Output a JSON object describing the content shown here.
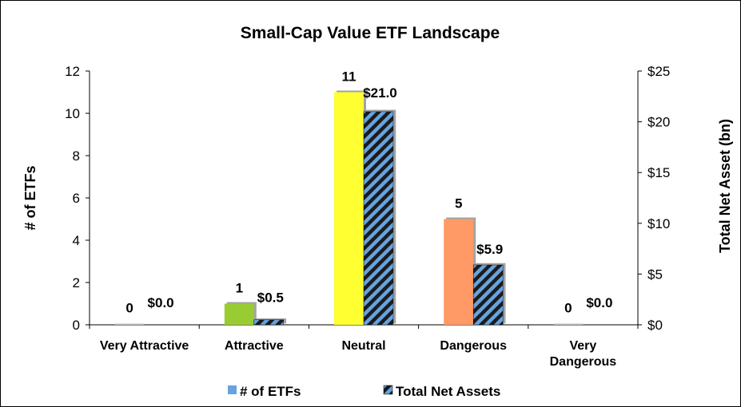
{
  "chart_data": {
    "type": "bar",
    "title": "Small-Cap Value ETF Landscape",
    "ylabel": "# of ETFs",
    "y2label": "Total Net Asset (bn)",
    "ylim": [
      0,
      12
    ],
    "y2lim": [
      0,
      25
    ],
    "yticks": [
      "0",
      "2",
      "4",
      "6",
      "8",
      "10",
      "12"
    ],
    "y2ticks": [
      "$0",
      "$5",
      "$10",
      "$15",
      "$20",
      "$25"
    ],
    "categories": [
      [
        "Very Attractive"
      ],
      [
        "Attractive"
      ],
      [
        "Neutral"
      ],
      [
        "Dangerous"
      ],
      [
        "Very",
        "Dangerous"
      ]
    ],
    "series": [
      {
        "name": "# of ETFs",
        "axis": "left",
        "values": [
          0,
          1,
          11,
          5,
          0
        ],
        "labels": [
          "0",
          "1",
          "11",
          "5",
          "0"
        ],
        "colors": [
          "#bfbfbf",
          "#99cc33",
          "#ffff33",
          "#ff9966",
          "#bfbfbf"
        ]
      },
      {
        "name": "Total Net Assets",
        "axis": "right",
        "values": [
          0.0,
          0.5,
          21.0,
          5.9,
          0.0
        ],
        "labels": [
          "$0.0",
          "$0.5",
          "$21.0",
          "$5.9",
          "$0.0"
        ],
        "pattern": "black-blue-diagonal-stripes"
      }
    ],
    "legend_position": "bottom",
    "grid": false
  },
  "colors": {
    "legend_swatch_etfs": "#66a3e0",
    "stripe_dark": "#1a1a1a",
    "stripe_light": "#66a3e0"
  }
}
